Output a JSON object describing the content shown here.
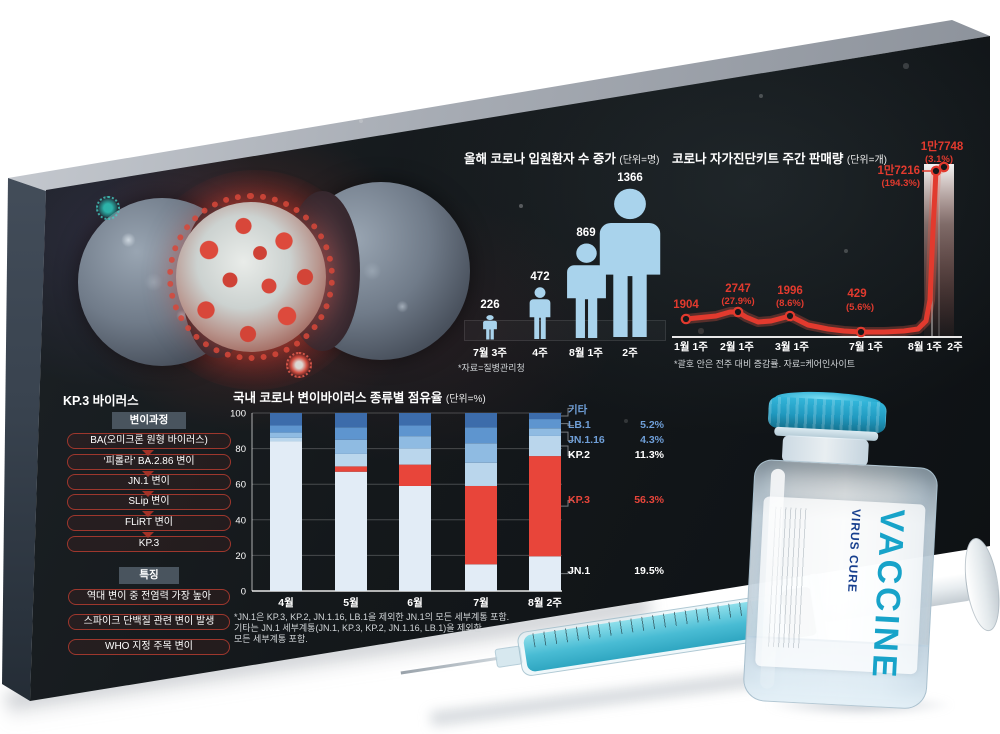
{
  "colors": {
    "panel": "#14181b",
    "accent_red": "#e23a2e",
    "person_blue": "#a9d3ec",
    "legend_blue": "#6f9fd8",
    "white": "#ffffff"
  },
  "hospitalized": {
    "title": "올해 코로나 입원환자 수 증가",
    "unit": "(단위=명)",
    "source": "*자료=질병관리청"
  },
  "kit_sales": {
    "title": "코로나 자가진단키트 주간 판매량",
    "unit": "(단위=개)",
    "footnote": "*괄호 안은 전주 대비 증감률. 자료=케어인사이트"
  },
  "variant_share": {
    "title": "국내 코로나 변이바이러스 종류별 점유율",
    "unit": "(단위=%)",
    "footnote1": "*JN.1은 KP.3, KP.2, JN.1.16, LB.1을 제외한 JN.1의 모든 세부계통 포함.",
    "footnote2": "기타는 JN.1 세부계통(JN.1, KP.3, KP.2, JN.1.16, LB.1)을 제외한",
    "footnote3": "모든 세부계통 포함."
  },
  "kp3": {
    "title": "KP.3 바이러스",
    "process_header": "변이과정",
    "process": [
      "BA(오미크론 원형 바이러스)",
      "‘피롤라’ BA.2.86 변이",
      "JN.1 변이",
      "SLip 변이",
      "FLiRT 변이",
      "KP.3"
    ],
    "features_header": "특징",
    "features": [
      "역대 변이 중 전염력 가장 높아",
      "스파이크 단백질 관련 변이 발생",
      "WHO 지정 주목 변이"
    ]
  },
  "vial": {
    "brand": "VACCINE",
    "sub": "VIRUS CURE"
  },
  "chart_data": [
    {
      "type": "bar",
      "variant": "pictogram-person",
      "title": "올해 코로나 입원환자 수 증가",
      "unit": "명",
      "categories": [
        "7월 3주",
        "4주",
        "8월 1주",
        "2주"
      ],
      "values": [
        226,
        472,
        869,
        1366
      ],
      "source": "질병관리청"
    },
    {
      "type": "line",
      "title": "코로나 자가진단키트 주간 판매량",
      "unit": "개",
      "x": [
        "1월 1주",
        "2월 1주",
        "3월 1주",
        "7월 1주",
        "8월 1주",
        "2주"
      ],
      "values": [
        1904,
        2747,
        1996,
        429,
        17216,
        17748
      ],
      "value_labels": [
        "1904",
        "2747",
        "1996",
        "429",
        "1만7216",
        "1만7748"
      ],
      "change_labels": [
        "",
        "(27.9%)",
        "(8.6%)",
        "(5.6%)",
        "(194.3%)",
        "(3.1%)"
      ],
      "note": "괄호 안은 전주 대비 증감률",
      "source": "케어인사이트"
    },
    {
      "type": "bar",
      "variant": "stacked",
      "title": "국내 코로나 변이바이러스 종류별 점유율",
      "unit": "%",
      "categories": [
        "4월",
        "5월",
        "6월",
        "7월",
        "8월 2주"
      ],
      "series": [
        {
          "name": "JN.1",
          "color": "#e2ecf6",
          "values": [
            84,
            67,
            59,
            15,
            19.5
          ]
        },
        {
          "name": "KP.3",
          "color": "#e8453a",
          "values": [
            0,
            3,
            12,
            44,
            56.3
          ]
        },
        {
          "name": "KP.2",
          "color": "#bad6ec",
          "values": [
            2,
            7,
            9,
            13,
            11.3
          ]
        },
        {
          "name": "JN.1.16",
          "color": "#8fbbe2",
          "values": [
            3,
            8,
            7,
            11,
            4.3
          ]
        },
        {
          "name": "LB.1",
          "color": "#5e95cf",
          "values": [
            4,
            7,
            6,
            9,
            5.2
          ]
        },
        {
          "name": "기타",
          "color": "#3c6cab",
          "values": [
            7,
            8,
            7,
            8,
            3.4
          ]
        }
      ],
      "legend": [
        {
          "name": "기타",
          "pct": "",
          "color": "#6f9fd8"
        },
        {
          "name": "LB.1",
          "pct": "5.2%",
          "color": "#6f9fd8"
        },
        {
          "name": "JN.1.16",
          "pct": "4.3%",
          "color": "#6f9fd8"
        },
        {
          "name": "KP.2",
          "pct": "11.3%",
          "color": "#ffffff"
        },
        {
          "name": "KP.3",
          "pct": "56.3%",
          "color": "#e8453a"
        },
        {
          "name": "JN.1",
          "pct": "19.5%",
          "color": "#ffffff"
        }
      ],
      "ylim": [
        0,
        100
      ],
      "yticks": [
        0,
        20,
        40,
        60,
        80,
        100
      ]
    }
  ]
}
